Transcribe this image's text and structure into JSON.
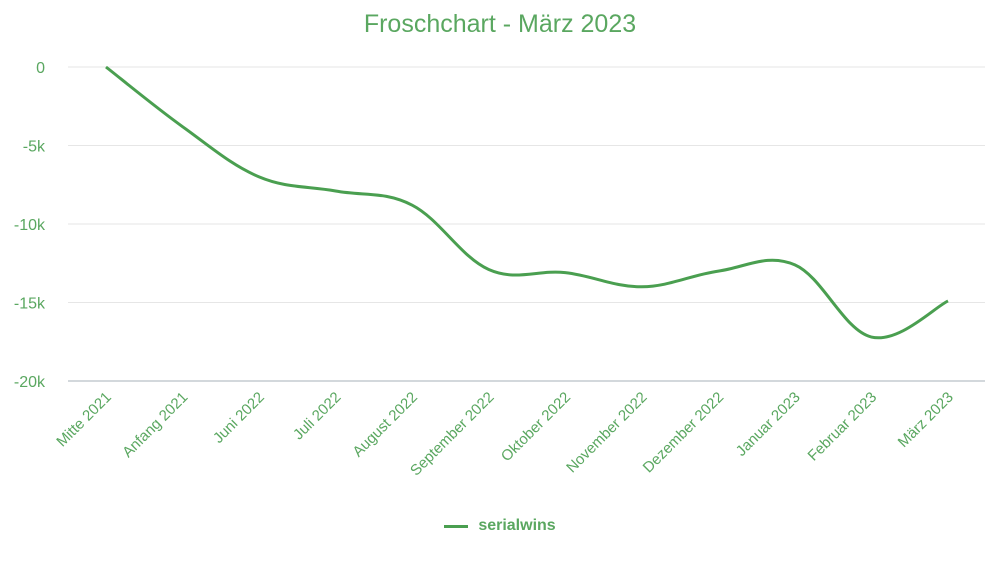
{
  "chart_data": {
    "type": "line",
    "title": "Froschchart - März 2023",
    "xlabel": "",
    "ylabel": "",
    "categories": [
      "Mitte 2021",
      "Anfang 2021",
      "Juni 2022",
      "Juli 2022",
      "August 2022",
      "September 2022",
      "Oktober 2022",
      "November 2022",
      "Dezember 2022",
      "Januar 2023",
      "Februar 2023",
      "März 2023"
    ],
    "series": [
      {
        "name": "serialwins",
        "color": "#4a9f50",
        "values": [
          0,
          -3800,
          -7000,
          -7900,
          -8800,
          -12900,
          -13100,
          -14000,
          -13000,
          -12600,
          -17200,
          -14900
        ]
      }
    ],
    "ylim": [
      -20000,
      0
    ],
    "yticks": [
      0,
      -5000,
      -10000,
      -15000,
      -20000
    ],
    "ytick_labels": [
      "0",
      "-5k",
      "-10k",
      "-15k",
      "-20k"
    ],
    "grid": true,
    "smooth": true,
    "legend_position": "bottom"
  },
  "legend": {
    "label": "serialwins"
  }
}
